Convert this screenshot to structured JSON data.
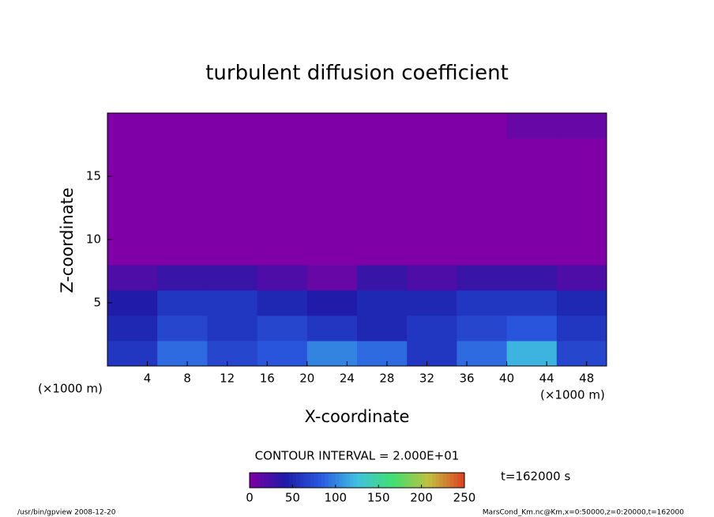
{
  "chart_data": {
    "type": "heatmap",
    "title": "turbulent diffusion coefficient",
    "xlabel": "X-coordinate",
    "ylabel": "Z-coordinate",
    "xunit": "(×1000 m)",
    "xlim": [
      0,
      50
    ],
    "ylim": [
      0,
      20
    ],
    "xticks": [
      4,
      8,
      12,
      16,
      20,
      24,
      28,
      32,
      36,
      40,
      44,
      48
    ],
    "yticks": [
      5,
      10,
      15
    ],
    "xbins": [
      0,
      5,
      10,
      15,
      20,
      25,
      30,
      35,
      40,
      45,
      50
    ],
    "zbins": [
      0,
      2,
      4,
      6,
      8,
      10,
      12,
      14,
      16,
      18,
      20
    ],
    "values": [
      [
        60,
        90,
        70,
        80,
        100,
        90,
        60,
        90,
        120,
        70
      ],
      [
        50,
        70,
        60,
        70,
        60,
        50,
        60,
        70,
        80,
        60
      ],
      [
        40,
        60,
        60,
        50,
        40,
        50,
        50,
        60,
        60,
        50
      ],
      [
        20,
        30,
        30,
        20,
        10,
        30,
        20,
        30,
        30,
        20
      ],
      [
        0,
        0,
        0,
        0,
        0,
        0,
        0,
        0,
        0,
        0
      ],
      [
        0,
        0,
        0,
        0,
        0,
        0,
        0,
        0,
        0,
        0
      ],
      [
        0,
        0,
        0,
        0,
        0,
        0,
        0,
        0,
        0,
        0
      ],
      [
        0,
        0,
        0,
        0,
        0,
        0,
        0,
        0,
        0,
        0
      ],
      [
        0,
        0,
        0,
        0,
        0,
        0,
        0,
        0,
        0,
        0
      ],
      [
        0,
        0,
        0,
        0,
        0,
        0,
        0,
        0,
        10,
        10
      ]
    ],
    "colormap": [
      "#7f00a6",
      "#1c1ca8",
      "#2a5ae0",
      "#40c0e0",
      "#40e070",
      "#c0c040",
      "#e04020"
    ],
    "clim": [
      0,
      250
    ],
    "cticks": [
      0,
      50,
      100,
      150,
      200,
      250
    ],
    "contour_note": "CONTOUR INTERVAL = 2.000E+01",
    "time_note": "t=162000 s",
    "footer_left": "/usr/bin/gpview   2008-12-20",
    "footer_right": "MarsCond_Km.nc@Km,x=0:50000,z=0:20000,t=162000"
  }
}
